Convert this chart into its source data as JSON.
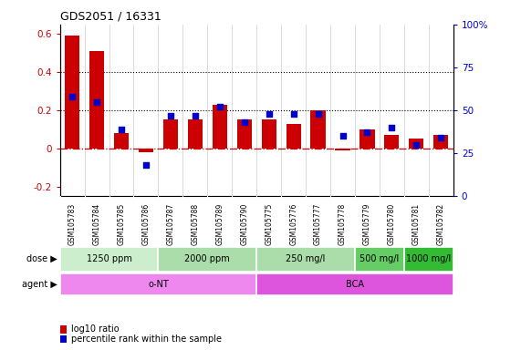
{
  "title": "GDS2051 / 16331",
  "samples": [
    "GSM105783",
    "GSM105784",
    "GSM105785",
    "GSM105786",
    "GSM105787",
    "GSM105788",
    "GSM105789",
    "GSM105790",
    "GSM105775",
    "GSM105776",
    "GSM105777",
    "GSM105778",
    "GSM105779",
    "GSM105780",
    "GSM105781",
    "GSM105782"
  ],
  "log10_ratio": [
    0.59,
    0.51,
    0.08,
    -0.02,
    0.15,
    0.15,
    0.23,
    0.15,
    0.15,
    0.13,
    0.2,
    -0.01,
    0.1,
    0.07,
    0.05,
    0.07
  ],
  "percentile_rank": [
    58,
    55,
    39,
    18,
    47,
    47,
    52,
    43,
    48,
    48,
    48,
    35,
    37,
    40,
    30,
    34
  ],
  "bar_color": "#cc0000",
  "dot_color": "#0000cc",
  "dashed_line_color": "#cc0000",
  "dotted_line_color": "#000000",
  "ylim_left": [
    -0.25,
    0.65
  ],
  "ylim_right": [
    0,
    100
  ],
  "yticks_left": [
    -0.2,
    0.0,
    0.2,
    0.4,
    0.6
  ],
  "ytick_labels_left": [
    "-0.2",
    "0",
    "0.2",
    "0.4",
    "0.6"
  ],
  "yticks_right": [
    0,
    25,
    50,
    75,
    100
  ],
  "ytick_labels_right": [
    "0",
    "25",
    "50",
    "75",
    "100%"
  ],
  "dose_groups": [
    {
      "label": "1250 ppm",
      "start": 0,
      "end": 4,
      "color": "#cceecc"
    },
    {
      "label": "2000 ppm",
      "start": 4,
      "end": 8,
      "color": "#aaddaa"
    },
    {
      "label": "250 mg/l",
      "start": 8,
      "end": 12,
      "color": "#aaddaa"
    },
    {
      "label": "500 mg/l",
      "start": 12,
      "end": 14,
      "color": "#66cc66"
    },
    {
      "label": "1000 mg/l",
      "start": 14,
      "end": 16,
      "color": "#33bb33"
    }
  ],
  "agent_groups": [
    {
      "label": "o-NT",
      "start": 0,
      "end": 8,
      "color": "#ee88ee"
    },
    {
      "label": "BCA",
      "start": 8,
      "end": 16,
      "color": "#dd55dd"
    }
  ],
  "legend_bar_label": "log10 ratio",
  "legend_dot_label": "percentile rank within the sample",
  "dose_label": "dose",
  "agent_label": "agent",
  "xtick_label_bg": "#cccccc",
  "plot_bg": "white"
}
